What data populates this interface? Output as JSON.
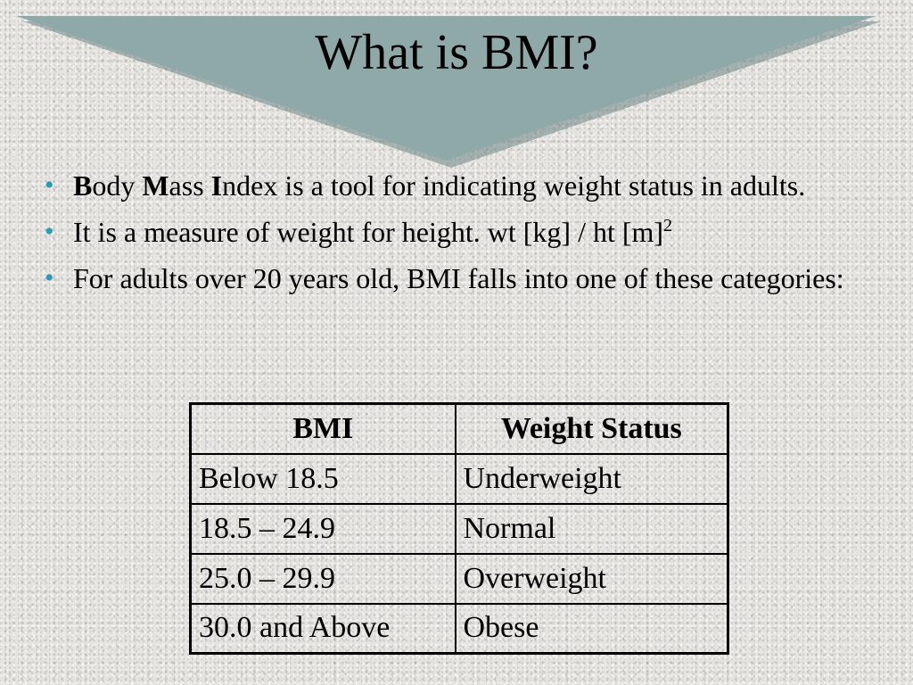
{
  "slide": {
    "title": "What is BMI?",
    "colors": {
      "banner_fill": "#8fa9a9",
      "banner_shadow": "#6d8585",
      "bullet": "#2a9bb0"
    },
    "bullets": [
      {
        "b1": "B",
        "t1": "ody ",
        "b2": "M",
        "t2": "ass ",
        "b3": "I",
        "t3": "ndex is a tool for indicating weight status in adults."
      },
      {
        "text": "It is a measure of weight for height. wt [kg] / ht [m]",
        "superscript": "2"
      },
      {
        "text": "For adults over 20 years old, BMI falls into one of these categories:"
      }
    ],
    "table": {
      "headers": [
        "BMI",
        "Weight Status"
      ],
      "rows": [
        [
          "Below 18.5",
          "Underweight"
        ],
        [
          "18.5 – 24.9",
          "Normal"
        ],
        [
          "25.0 – 29.9",
          "Overweight"
        ],
        [
          "30.0 and Above",
          "Obese"
        ]
      ]
    }
  }
}
